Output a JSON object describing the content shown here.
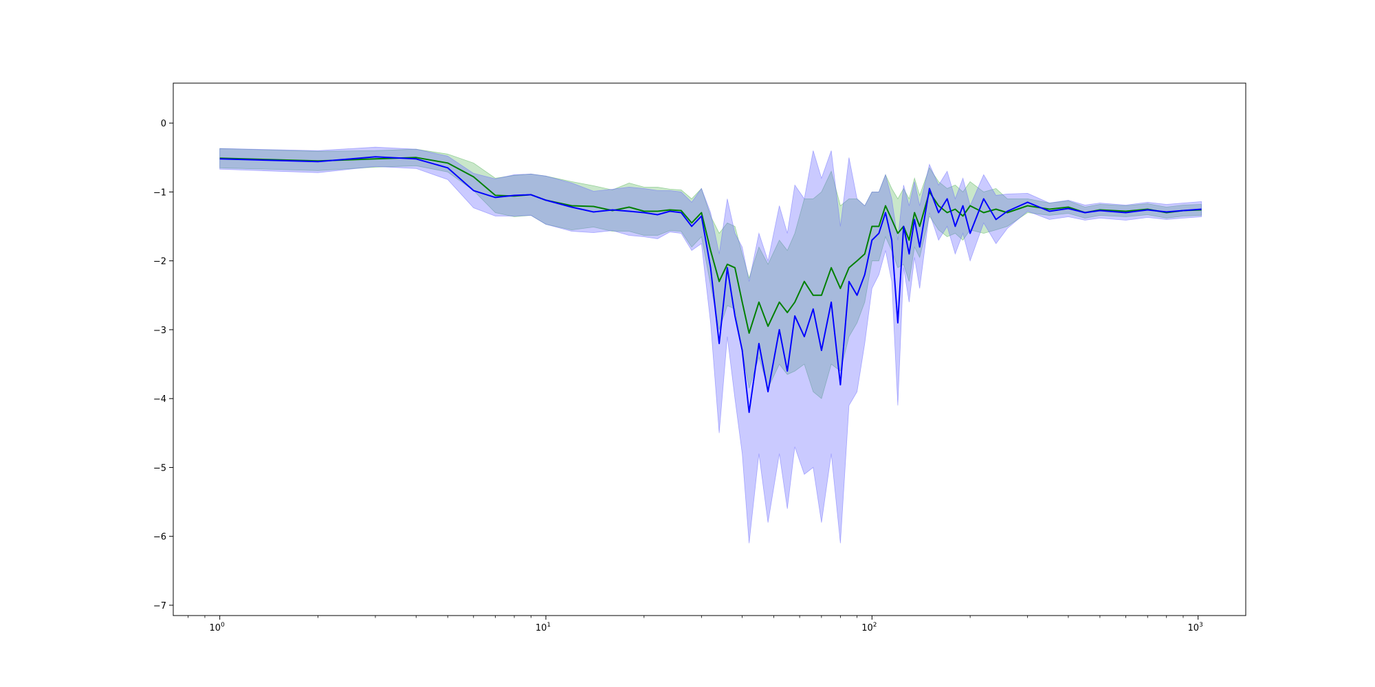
{
  "chart_data": {
    "type": "line",
    "title": "",
    "xlabel": "",
    "ylabel": "",
    "xscale": "log",
    "xlim": [
      0.72,
      1400
    ],
    "ylim": [
      -7.15,
      0.58
    ],
    "grid": false,
    "legend": "none",
    "x_ticks": [
      {
        "base": "10",
        "exp": "0",
        "value": 1
      },
      {
        "base": "10",
        "exp": "1",
        "value": 10
      },
      {
        "base": "10",
        "exp": "2",
        "value": 100
      },
      {
        "base": "10",
        "exp": "3",
        "value": 1000
      }
    ],
    "y_ticks": [
      {
        "label": "0",
        "value": 0
      },
      {
        "label": "−1",
        "value": -1
      },
      {
        "label": "−2",
        "value": -2
      },
      {
        "label": "−3",
        "value": -3
      },
      {
        "label": "−4",
        "value": -4
      },
      {
        "label": "−5",
        "value": -5
      },
      {
        "label": "−6",
        "value": -6
      },
      {
        "label": "−7",
        "value": -7
      }
    ],
    "series": [
      {
        "color": "#008000",
        "band_color": "#4caf50",
        "band_opacity": 0.3,
        "points": [
          [
            1,
            -0.51,
            0.14
          ],
          [
            2,
            -0.55,
            0.14
          ],
          [
            3,
            -0.52,
            0.12
          ],
          [
            4,
            -0.5,
            0.12
          ],
          [
            5,
            -0.58,
            0.13
          ],
          [
            6,
            -0.78,
            0.2
          ],
          [
            7,
            -1.05,
            0.25
          ],
          [
            8,
            -1.06,
            0.3
          ],
          [
            9,
            -1.04,
            0.3
          ],
          [
            10,
            -1.12,
            0.35
          ],
          [
            12,
            -1.2,
            0.35
          ],
          [
            14,
            -1.21,
            0.3
          ],
          [
            16,
            -1.27,
            0.3
          ],
          [
            18,
            -1.22,
            0.35
          ],
          [
            20,
            -1.28,
            0.35
          ],
          [
            22,
            -1.28,
            0.35
          ],
          [
            24,
            -1.26,
            0.3
          ],
          [
            26,
            -1.27,
            0.3
          ],
          [
            28,
            -1.45,
            0.35
          ],
          [
            30,
            -1.3,
            0.35
          ],
          [
            32,
            -1.85,
            0.5
          ],
          [
            34,
            -2.3,
            0.7
          ],
          [
            36,
            -2.05,
            0.6
          ],
          [
            38,
            -2.1,
            0.6
          ],
          [
            40,
            -2.6,
            0.7
          ],
          [
            42,
            -3.05,
            0.8
          ],
          [
            45,
            -2.6,
            0.8
          ],
          [
            48,
            -2.95,
            0.9
          ],
          [
            52,
            -2.6,
            0.9
          ],
          [
            55,
            -2.75,
            0.9
          ],
          [
            58,
            -2.6,
            1.0
          ],
          [
            62,
            -2.3,
            1.2
          ],
          [
            66,
            -2.5,
            1.4
          ],
          [
            70,
            -2.5,
            1.5
          ],
          [
            75,
            -2.1,
            1.4
          ],
          [
            80,
            -2.4,
            1.2
          ],
          [
            85,
            -2.1,
            1.0
          ],
          [
            90,
            -2.0,
            0.9
          ],
          [
            95,
            -1.9,
            0.7
          ],
          [
            100,
            -1.5,
            0.5
          ],
          [
            105,
            -1.5,
            0.5
          ],
          [
            110,
            -1.2,
            0.45
          ],
          [
            115,
            -1.4,
            0.45
          ],
          [
            120,
            -1.6,
            0.5
          ],
          [
            125,
            -1.5,
            0.55
          ],
          [
            130,
            -1.7,
            0.6
          ],
          [
            135,
            -1.3,
            0.5
          ],
          [
            140,
            -1.5,
            0.45
          ],
          [
            150,
            -1.0,
            0.35
          ],
          [
            160,
            -1.2,
            0.35
          ],
          [
            170,
            -1.3,
            0.35
          ],
          [
            180,
            -1.25,
            0.35
          ],
          [
            190,
            -1.35,
            0.35
          ],
          [
            200,
            -1.2,
            0.35
          ],
          [
            220,
            -1.3,
            0.3
          ],
          [
            240,
            -1.25,
            0.3
          ],
          [
            260,
            -1.3,
            0.2
          ],
          [
            300,
            -1.2,
            0.1
          ],
          [
            350,
            -1.25,
            0.09
          ],
          [
            400,
            -1.22,
            0.09
          ],
          [
            450,
            -1.3,
            0.08
          ],
          [
            500,
            -1.26,
            0.08
          ],
          [
            600,
            -1.28,
            0.08
          ],
          [
            700,
            -1.25,
            0.08
          ],
          [
            800,
            -1.3,
            0.08
          ],
          [
            900,
            -1.27,
            0.08
          ],
          [
            1024,
            -1.26,
            0.08
          ]
        ]
      },
      {
        "color": "#0000ff",
        "band_color": "#6666ff",
        "band_opacity": 0.35,
        "points": [
          [
            1,
            -0.52,
            0.15
          ],
          [
            2,
            -0.56,
            0.16
          ],
          [
            3,
            -0.49,
            0.14
          ],
          [
            4,
            -0.52,
            0.14
          ],
          [
            5,
            -0.65,
            0.17
          ],
          [
            6,
            -0.98,
            0.25
          ],
          [
            7,
            -1.08,
            0.27
          ],
          [
            8,
            -1.05,
            0.3
          ],
          [
            9,
            -1.04,
            0.3
          ],
          [
            10,
            -1.12,
            0.35
          ],
          [
            12,
            -1.22,
            0.35
          ],
          [
            14,
            -1.29,
            0.3
          ],
          [
            16,
            -1.26,
            0.3
          ],
          [
            18,
            -1.28,
            0.35
          ],
          [
            20,
            -1.3,
            0.35
          ],
          [
            22,
            -1.33,
            0.35
          ],
          [
            24,
            -1.28,
            0.3
          ],
          [
            26,
            -1.3,
            0.3
          ],
          [
            28,
            -1.5,
            0.35
          ],
          [
            30,
            -1.35,
            0.4
          ],
          [
            32,
            -2.1,
            0.8
          ],
          [
            34,
            -3.2,
            1.3
          ],
          [
            36,
            -2.1,
            1.0
          ],
          [
            38,
            -2.8,
            1.2
          ],
          [
            40,
            -3.3,
            1.5
          ],
          [
            42,
            -4.2,
            1.9
          ],
          [
            45,
            -3.2,
            1.6
          ],
          [
            48,
            -3.9,
            1.9
          ],
          [
            52,
            -3.0,
            1.8
          ],
          [
            55,
            -3.6,
            2.0
          ],
          [
            58,
            -2.8,
            1.9
          ],
          [
            62,
            -3.1,
            2.0
          ],
          [
            66,
            -2.7,
            2.3
          ],
          [
            70,
            -3.3,
            2.5
          ],
          [
            75,
            -2.6,
            2.2
          ],
          [
            80,
            -3.8,
            2.3
          ],
          [
            85,
            -2.3,
            1.8
          ],
          [
            90,
            -2.5,
            1.4
          ],
          [
            95,
            -2.2,
            1.0
          ],
          [
            100,
            -1.7,
            0.7
          ],
          [
            105,
            -1.6,
            0.6
          ],
          [
            110,
            -1.3,
            0.55
          ],
          [
            115,
            -1.7,
            0.6
          ],
          [
            120,
            -2.9,
            1.2
          ],
          [
            125,
            -1.5,
            0.6
          ],
          [
            130,
            -1.9,
            0.7
          ],
          [
            135,
            -1.4,
            0.55
          ],
          [
            140,
            -1.8,
            0.6
          ],
          [
            150,
            -0.95,
            0.35
          ],
          [
            160,
            -1.3,
            0.4
          ],
          [
            170,
            -1.1,
            0.4
          ],
          [
            180,
            -1.5,
            0.4
          ],
          [
            190,
            -1.2,
            0.4
          ],
          [
            200,
            -1.6,
            0.4
          ],
          [
            220,
            -1.1,
            0.35
          ],
          [
            240,
            -1.4,
            0.35
          ],
          [
            260,
            -1.28,
            0.25
          ],
          [
            300,
            -1.15,
            0.13
          ],
          [
            350,
            -1.28,
            0.12
          ],
          [
            400,
            -1.24,
            0.12
          ],
          [
            450,
            -1.3,
            0.11
          ],
          [
            500,
            -1.27,
            0.11
          ],
          [
            600,
            -1.3,
            0.11
          ],
          [
            700,
            -1.26,
            0.11
          ],
          [
            800,
            -1.29,
            0.11
          ],
          [
            900,
            -1.27,
            0.11
          ],
          [
            1024,
            -1.25,
            0.11
          ]
        ]
      }
    ]
  }
}
